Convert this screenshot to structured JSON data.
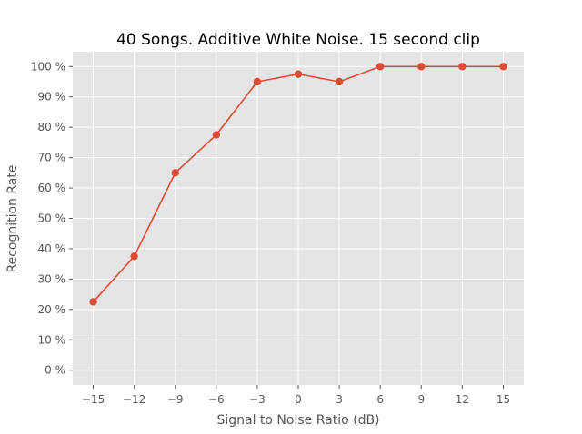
{
  "chart_data": {
    "type": "line",
    "title": "40 Songs. Additive White Noise. 15 second clip",
    "xlabel": "Signal to Noise Ratio (dB)",
    "ylabel": "Recognition Rate",
    "x_ticks": [
      -15,
      -12,
      -9,
      -6,
      -3,
      0,
      3,
      6,
      9,
      12,
      15
    ],
    "x_tick_labels": [
      "−15",
      "−12",
      "−9",
      "−6",
      "−3",
      "0",
      "3",
      "6",
      "9",
      "12",
      "15"
    ],
    "y_ticks": [
      0,
      10,
      20,
      30,
      40,
      50,
      60,
      70,
      80,
      90,
      100
    ],
    "y_tick_labels": [
      "0 %",
      "10 %",
      "20 %",
      "30 %",
      "40 %",
      "50 %",
      "60 %",
      "70 %",
      "80 %",
      "90 %",
      "100 %"
    ],
    "xlim": [
      -16.5,
      16.5
    ],
    "ylim": [
      -4.87,
      104.87
    ],
    "grid": true,
    "series": [
      {
        "x": [
          -15,
          -12,
          -9,
          -6,
          -3,
          0,
          3,
          6,
          9,
          12,
          15
        ],
        "values": [
          22.5,
          37.5,
          65,
          77.5,
          95,
          97.5,
          95,
          100,
          100,
          100,
          100
        ],
        "color": "#E24A33"
      }
    ],
    "background": "#E5E5E5",
    "grid_color": "#FFFFFF"
  }
}
